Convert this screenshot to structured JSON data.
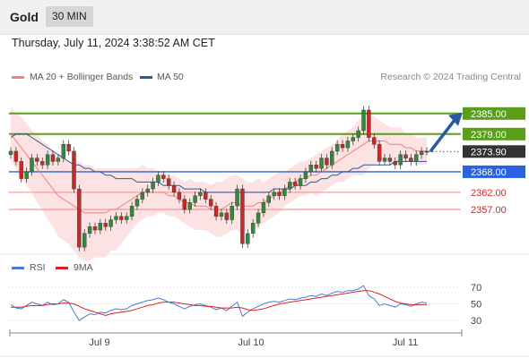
{
  "header": {
    "instrument": "Gold",
    "timeframe": "30 MIN"
  },
  "timestamp": "Thursday, July 11, 2024 3:38:52 AM CET",
  "legend": {
    "ma20": "MA 20 + Bollinger Bands",
    "ma50": "MA 50",
    "research": "Research © 2024 Trading Central"
  },
  "rsi_legend": {
    "rsi": "RSI",
    "ma9": "9MA"
  },
  "colors": {
    "ma20": "#f08080",
    "ma50": "#2a5a9e",
    "support_resistance": "#5a9e1a",
    "pivot": "#2a62e0",
    "support": "#f5a0a0",
    "rsi": "#4a7ad8",
    "ma9": "#e02020"
  },
  "chart_data": [
    {
      "type": "line",
      "instrument": "Gold",
      "x_tick_labels": [
        "Jul 9",
        "Jul 10",
        "Jul 11"
      ],
      "y_range": [
        2345,
        2392
      ],
      "current_price": "2373.90",
      "resistance_levels": [
        "2385.00",
        "2379.00"
      ],
      "pivot": "2368.00",
      "support_levels": [
        "2362.00",
        "2357.00"
      ],
      "forecast": {
        "from": 2373.9,
        "to": 2385
      },
      "close": [
        2374,
        2371,
        2366,
        2368,
        2372,
        2371,
        2370,
        2373,
        2371,
        2372,
        2376,
        2374,
        2363,
        2346,
        2350,
        2352,
        2351,
        2353,
        2352,
        2354,
        2355,
        2354,
        2355,
        2358,
        2360,
        2362,
        2363,
        2365,
        2367,
        2366,
        2364,
        2362,
        2360,
        2357,
        2359,
        2361,
        2362,
        2360,
        2358,
        2355,
        2356,
        2354,
        2358,
        2363,
        2347,
        2350,
        2353,
        2356,
        2359,
        2361,
        2362,
        2361,
        2363,
        2365,
        2364,
        2366,
        2368,
        2370,
        2369,
        2372,
        2370,
        2374,
        2376,
        2375,
        2377,
        2378,
        2380,
        2386,
        2378,
        2376,
        2371,
        2372,
        2371,
        2370,
        2373,
        2372,
        2371,
        2373,
        2374,
        2373.9
      ],
      "ma20": [
        2379,
        2377,
        2375,
        2373,
        2371,
        2369,
        2367,
        2365,
        2363,
        2361,
        2360,
        2359,
        2358,
        2357,
        2356,
        2356,
        2356,
        2356,
        2356,
        2357,
        2357,
        2358,
        2359,
        2360,
        2361,
        2362,
        2362,
        2362,
        2362,
        2362,
        2361,
        2361,
        2360,
        2359,
        2359,
        2358,
        2358,
        2358,
        2357,
        2357,
        2357,
        2358,
        2359,
        2359,
        2358,
        2358,
        2358,
        2359,
        2359,
        2360,
        2361,
        2362,
        2363,
        2364,
        2365,
        2366,
        2366,
        2367,
        2367,
        2368,
        2369,
        2370,
        2371,
        2372,
        2373,
        2374,
        2375,
        2376,
        2377,
        2377,
        2377,
        2377,
        2376,
        2376,
        2376,
        2375,
        2375,
        2374,
        2374,
        2374
      ],
      "ma50": [
        2378,
        2379,
        2379,
        2379,
        2378,
        2377,
        2376,
        2375,
        2374,
        2373,
        2372,
        2371,
        2370,
        2370,
        2369,
        2369,
        2368,
        2368,
        2367,
        2367,
        2366,
        2366,
        2366,
        2366,
        2365,
        2365,
        2365,
        2365,
        2365,
        2364,
        2364,
        2364,
        2364,
        2363,
        2363,
        2363,
        2363,
        2362,
        2362,
        2362,
        2362,
        2362,
        2362,
        2362,
        2362,
        2362,
        2362,
        2362,
        2362,
        2362,
        2363,
        2363,
        2363,
        2363,
        2364,
        2364,
        2364,
        2365,
        2365,
        2366,
        2366,
        2367,
        2367,
        2368,
        2368,
        2369,
        2369,
        2370,
        2370,
        2370,
        2370,
        2370,
        2370,
        2371,
        2371,
        2371,
        2371,
        2371,
        2371,
        2371
      ],
      "bb_width": [
        8,
        8,
        9,
        9,
        9,
        10,
        10,
        11,
        11,
        12,
        12,
        12,
        13,
        14,
        14,
        14,
        13,
        13,
        13,
        12,
        12,
        11,
        10,
        9,
        8,
        8,
        7,
        7,
        6,
        6,
        6,
        6,
        6,
        6,
        7,
        7,
        7,
        7,
        7,
        8,
        8,
        8,
        8,
        8,
        8,
        7,
        7,
        7,
        6,
        6,
        6,
        6,
        5,
        5,
        5,
        5,
        5,
        5,
        6,
        6,
        6,
        6,
        6,
        7,
        7,
        7,
        8,
        9,
        8,
        7,
        6,
        5,
        5,
        5,
        5,
        4,
        4,
        4,
        4,
        4
      ]
    },
    {
      "type": "line",
      "name": "RSI",
      "y_ticks": [
        30,
        50,
        70
      ],
      "rsi": [
        49,
        45,
        44,
        48,
        52,
        50,
        48,
        52,
        49,
        50,
        55,
        52,
        40,
        30,
        34,
        38,
        37,
        40,
        39,
        42,
        44,
        43,
        44,
        48,
        50,
        52,
        54,
        55,
        57,
        55,
        52,
        50,
        47,
        44,
        47,
        49,
        50,
        48,
        46,
        43,
        45,
        42,
        47,
        52,
        35,
        40,
        44,
        47,
        50,
        52,
        53,
        52,
        54,
        56,
        55,
        57,
        58,
        60,
        59,
        62,
        60,
        63,
        65,
        64,
        66,
        66,
        68,
        72,
        60,
        56,
        48,
        50,
        48,
        46,
        50,
        49,
        47,
        50,
        52,
        51
      ],
      "ma9": [
        46,
        46,
        46,
        47,
        48,
        48,
        48,
        49,
        50,
        50,
        51,
        51,
        50,
        47,
        44,
        42,
        40,
        38,
        36,
        38,
        39,
        40,
        41,
        42,
        44,
        46,
        48,
        49,
        51,
        52,
        52,
        52,
        51,
        50,
        49,
        48,
        48,
        47,
        47,
        46,
        45,
        45,
        45,
        46,
        45,
        43,
        42,
        43,
        44,
        46,
        48,
        50,
        51,
        52,
        53,
        54,
        55,
        56,
        57,
        58,
        59,
        60,
        61,
        62,
        63,
        64,
        65,
        66,
        66,
        64,
        62,
        59,
        56,
        53,
        51,
        50,
        49,
        49,
        49,
        49
      ]
    }
  ]
}
